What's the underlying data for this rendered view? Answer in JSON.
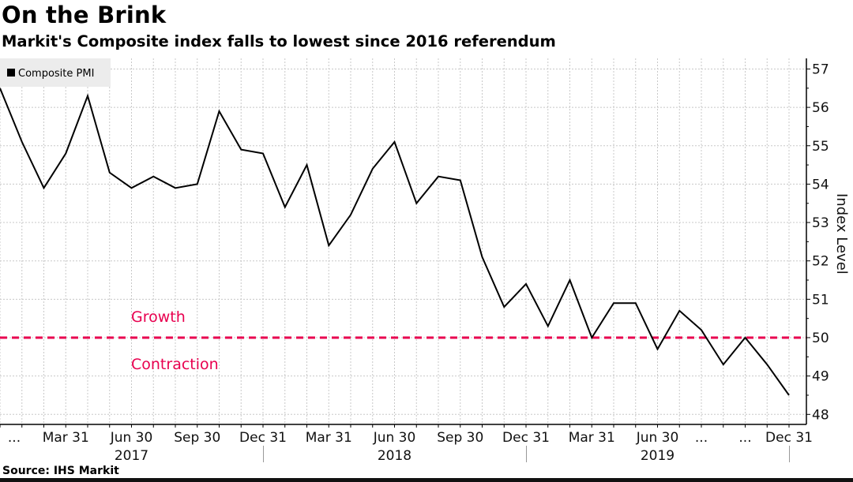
{
  "title": "On the Brink",
  "subtitle": "Markit's Composite index falls to lowest since 2016 referendum",
  "source": "Source: IHS Markit",
  "colors": {
    "line": "#000000",
    "threshold": "#e8004f",
    "grid": "#c8c8c8",
    "legend_bg": "#ececec"
  },
  "chart_data": {
    "type": "line",
    "title": "On the Brink",
    "subtitle": "Markit's Composite index falls to lowest since 2016 referendum",
    "xlabel": "",
    "ylabel": "Index Level",
    "ylim": [
      48,
      57
    ],
    "yticks": [
      48,
      49,
      50,
      51,
      52,
      53,
      54,
      55,
      56,
      57
    ],
    "y_axis_side": "right",
    "grid": true,
    "legend": {
      "placement": "top-left",
      "entries": [
        "Composite PMI"
      ]
    },
    "x_tick_labels": [
      "...",
      "Mar 31",
      "Jun 30",
      "Sep 30",
      "Dec 31",
      "Mar 31",
      "Jun 30",
      "Sep 30",
      "Dec 31",
      "Mar 31",
      "Jun 30",
      "...",
      "...",
      "Dec 31"
    ],
    "x_tick_months": [
      0,
      3,
      6,
      9,
      12,
      15,
      18,
      21,
      24,
      27,
      30,
      32,
      34,
      36
    ],
    "year_labels": [
      {
        "label": "2017",
        "center_month": 6
      },
      {
        "label": "2018",
        "center_month": 18
      },
      {
        "label": "2019",
        "center_month": 30
      }
    ],
    "year_separators_months": [
      12,
      24,
      36
    ],
    "x": [
      "Dec 2016",
      "Jan 2017",
      "Feb 2017",
      "Mar 2017",
      "Apr 2017",
      "May 2017",
      "Jun 2017",
      "Jul 2017",
      "Aug 2017",
      "Sep 2017",
      "Oct 2017",
      "Nov 2017",
      "Dec 2017",
      "Jan 2018",
      "Feb 2018",
      "Mar 2018",
      "Apr 2018",
      "May 2018",
      "Jun 2018",
      "Jul 2018",
      "Aug 2018",
      "Sep 2018",
      "Oct 2018",
      "Nov 2018",
      "Dec 2018",
      "Jan 2019",
      "Feb 2019",
      "Mar 2019",
      "Apr 2019",
      "May 2019",
      "Jun 2019",
      "Jul 2019",
      "Aug 2019",
      "Sep 2019",
      "Oct 2019",
      "Nov 2019",
      "Dec 2019"
    ],
    "series": [
      {
        "name": "Composite PMI",
        "values": [
          56.5,
          55.1,
          53.9,
          54.8,
          56.3,
          54.3,
          53.9,
          54.2,
          53.9,
          54.0,
          55.9,
          54.9,
          54.8,
          53.4,
          54.5,
          52.4,
          53.2,
          54.4,
          55.1,
          53.5,
          54.2,
          54.1,
          52.1,
          50.8,
          51.4,
          50.3,
          51.5,
          50.0,
          50.9,
          50.9,
          49.7,
          50.7,
          50.2,
          49.3,
          50.0,
          49.3,
          48.5
        ]
      }
    ],
    "reference_line": {
      "value": 50,
      "style": "dashed"
    },
    "annotations": [
      {
        "text": "Growth",
        "position": "above-reference"
      },
      {
        "text": "Contraction",
        "position": "below-reference"
      }
    ]
  }
}
